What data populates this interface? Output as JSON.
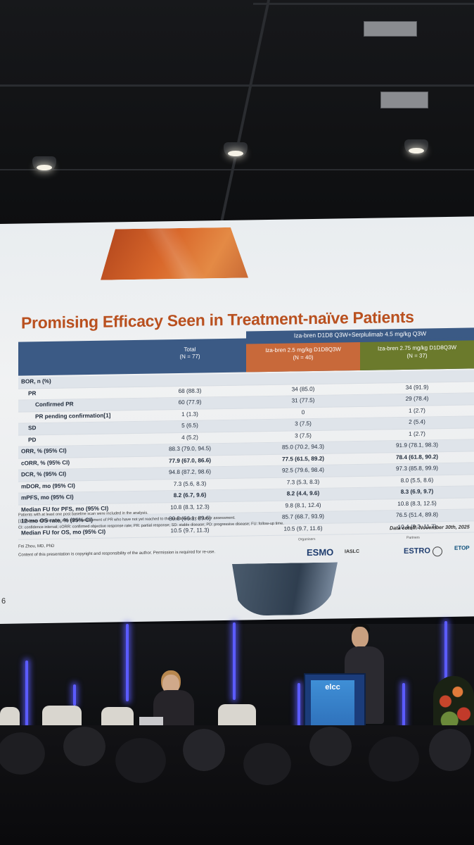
{
  "slide": {
    "title": "Promising Efficacy Seen in Treatment-naïve Patients",
    "group_header": "Iza-bren D1D8 Q3W+Serplulimab 4.5 mg/kg Q3W",
    "col_total": "Total",
    "col_total_n": "(N = 77)",
    "arm1_name": "Iza-bren 2.5 mg/kg D1D8Q3W",
    "arm1_n": "(N = 40)",
    "arm2_name": "Iza-bren 2.75 mg/kg D1D8Q3W",
    "arm2_n": "(N = 37)",
    "rows": [
      {
        "label": "BOR, n (%)",
        "total": "",
        "arm1": "",
        "arm2": ""
      },
      {
        "label": "PR",
        "total": "68 (88.3)",
        "arm1": "34 (85.0)",
        "arm2": "34 (91.9)"
      },
      {
        "label": "Confirmed PR",
        "total": "60 (77.9)",
        "arm1": "31 (77.5)",
        "arm2": "29 (78.4)"
      },
      {
        "label": "PR pending confirmation[1]",
        "total": "1 (1.3)",
        "arm1": "0",
        "arm2": "1 (2.7)"
      },
      {
        "label": "SD",
        "total": "5 (6.5)",
        "arm1": "3 (7.5)",
        "arm2": "2 (5.4)"
      },
      {
        "label": "PD",
        "total": "4 (5.2)",
        "arm1": "3 (7.5)",
        "arm2": "1 (2.7)"
      },
      {
        "label": "ORR, % (95% CI)",
        "total": "88.3 (79.0, 94.5)",
        "arm1": "85.0 (70.2, 94.3)",
        "arm2": "91.9 (78.1, 98.3)"
      },
      {
        "label": "cORR, % (95% CI)",
        "total": "77.9 (67.0, 86.6)",
        "arm1": "77.5 (61.5, 89.2)",
        "arm2": "78.4 (61.8, 90.2)"
      },
      {
        "label": "DCR, % (95% CI)",
        "total": "94.8 (87.2, 98.6)",
        "arm1": "92.5 (79.6, 98.4)",
        "arm2": "97.3 (85.8, 99.9)"
      },
      {
        "label": "mDOR, mo (95% CI)",
        "total": "7.3 (5.6, 8.3)",
        "arm1": "7.3 (5.3, 8.3)",
        "arm2": "8.0 (5.5, 8.6)"
      },
      {
        "label": "mPFS, mo (95% CI)",
        "total": "8.2 (6.7, 9.6)",
        "arm1": "8.2 (4.4, 9.6)",
        "arm2": "8.3 (6.9, 9.7)"
      },
      {
        "label": "Median FU for PFS, mo (95% CI)",
        "total": "10.8 (8.3, 12.3)",
        "arm1": "9.8 (8.1, 12.4)",
        "arm2": "10.8 (8.3, 12.5)"
      },
      {
        "label": "12-mo OS rate, % (95% CI)",
        "total": "80.8 (66.1, 89.6)",
        "arm1": "85.7 (68.7, 93.9)",
        "arm2": "76.5 (51.4, 89.8)"
      },
      {
        "label": "Median FU for OS, mo (95% CI)",
        "total": "10.5 (9.7, 11.3)",
        "arm1": "10.5 (9.7, 11.6)",
        "arm2": "10.4 (9.2, 11.7)"
      }
    ],
    "footnote_1": "Patients with at least one post baseline scan were included in the analysis.",
    "footnote_2": "[1] Patients still on study with tumor assessment of PR who have not yet reached to the next time point of tumor assessment.",
    "footnote_3": "CI: confidence interval; cORR: confirmed objective response rate; PR: partial response; SD: stable disease; PD: progressive disease; FU: follow-up time.",
    "data_cutoff": "Data cutoff: November 30th, 2025",
    "author": "Fei Zhou, MD, PhD",
    "copyright": "Content of this presentation is copyright and responsibility of the author. Permission is required for re-use.",
    "organisers_label": "Organisers",
    "partners_label": "Partners",
    "logo_esmo": "ESMO",
    "logo_iaslc": "IASLC",
    "logo_estro": "ESTRO",
    "logo_etop": "ETOP",
    "page_number": "6"
  },
  "podium": {
    "logo": "elcc"
  },
  "colors": {
    "title": "#b9501f",
    "header_blue": "#3b5a85",
    "arm1_orange": "#c8693a",
    "arm2_olive": "#6b7a2c"
  }
}
